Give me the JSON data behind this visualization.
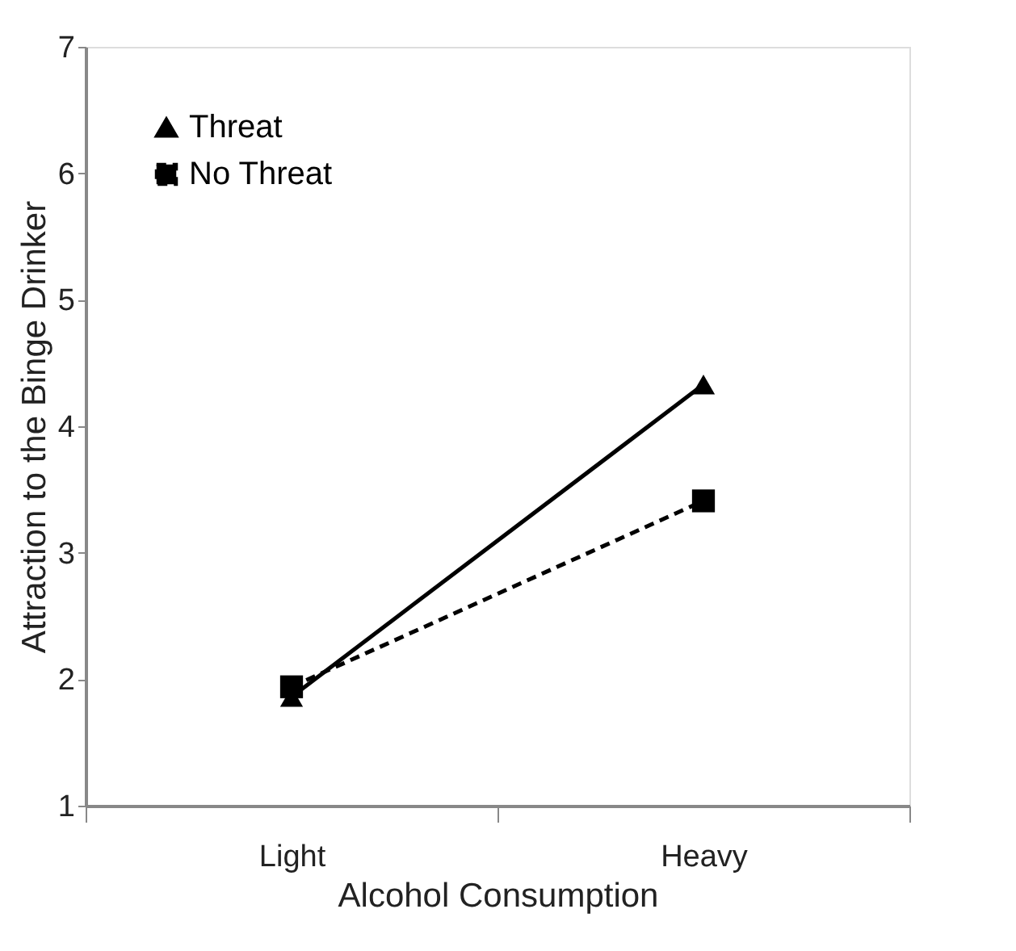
{
  "chart_data": {
    "type": "line",
    "xlabel": "Alcohol Consumption",
    "ylabel": "Attraction to the Binge Drinker",
    "categories": [
      "Light",
      "Heavy"
    ],
    "series": [
      {
        "name": "Threat",
        "color": "#000000",
        "values": [
          1.86,
          4.33
        ],
        "marker": "triangle",
        "line_style": "solid"
      },
      {
        "name": "No Threat",
        "color": "#000000",
        "values": [
          1.94,
          3.41
        ],
        "marker": "square",
        "line_style": "dashed"
      }
    ],
    "ylim": [
      1,
      7
    ],
    "yticks": [
      1,
      2,
      3,
      4,
      5,
      6,
      7
    ],
    "grid": false,
    "legend": "top left"
  }
}
